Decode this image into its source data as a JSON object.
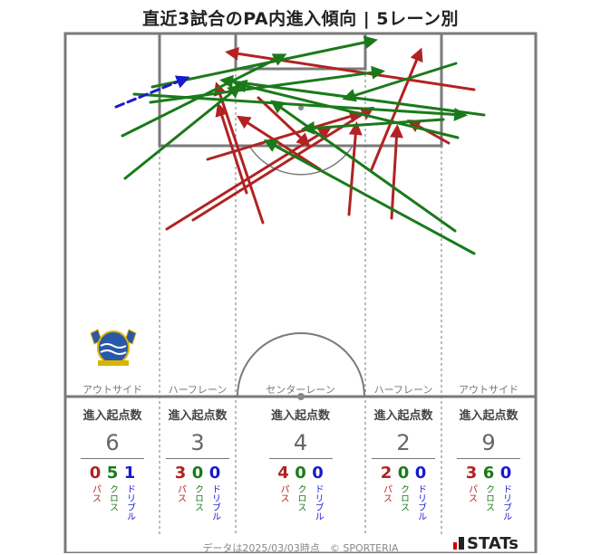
{
  "title": "直近3試合のPA内進入傾向 | 5レーン別",
  "footer": "データは2025/03/03時点　© SPORTERIA",
  "brand": "STATs",
  "colors": {
    "pass": "#b22222",
    "cross": "#1a7a1a",
    "dribble": "#1a1acc",
    "line": "#777777"
  },
  "labels": {
    "start_points": "進入起点数",
    "pass": "パス",
    "cross": "クロス",
    "dribble": "ドリブル"
  },
  "lanes": [
    {
      "name": "アウトサイド",
      "total": "6",
      "pass": "0",
      "cross": "5",
      "dribble": "1"
    },
    {
      "name": "ハーフレーン",
      "total": "3",
      "pass": "3",
      "cross": "0",
      "dribble": "0"
    },
    {
      "name": "センターレーン",
      "total": "4",
      "pass": "4",
      "cross": "0",
      "dribble": "0"
    },
    {
      "name": "ハーフレーン",
      "total": "2",
      "pass": "2",
      "cross": "0",
      "dribble": "0"
    },
    {
      "name": "アウトサイド",
      "total": "9",
      "pass": "3",
      "cross": "6",
      "dribble": "0"
    }
  ],
  "chart_data": {
    "type": "scatter",
    "description_units": "pitch coordinates (x across width, y down from goal line)",
    "arrows": [
      {
        "kind": "pass",
        "from": [
          290,
          246
        ],
        "to": [
          240,
          96
        ]
      },
      {
        "kind": "pass",
        "from": [
          213,
          243
        ],
        "to": [
          408,
          121
        ]
      },
      {
        "kind": "pass",
        "from": [
          184,
          253
        ],
        "to": [
          361,
          143
        ]
      },
      {
        "kind": "pass",
        "from": [
          272,
          213
        ],
        "to": [
          242,
          119
        ]
      },
      {
        "kind": "pass",
        "from": [
          385,
          237
        ],
        "to": [
          393,
          140
        ]
      },
      {
        "kind": "pass",
        "from": [
          410,
          187
        ],
        "to": [
          463,
          58
        ]
      },
      {
        "kind": "pass",
        "from": [
          432,
          241
        ],
        "to": [
          438,
          143
        ]
      },
      {
        "kind": "pass",
        "from": [
          353,
          187
        ],
        "to": [
          266,
          131
        ]
      },
      {
        "kind": "pass",
        "from": [
          523,
          99
        ],
        "to": [
          254,
          58
        ]
      },
      {
        "kind": "pass",
        "from": [
          495,
          158
        ],
        "to": [
          454,
          135
        ]
      },
      {
        "kind": "pass",
        "from": [
          229,
          176
        ],
        "to": [
          395,
          126
        ]
      },
      {
        "kind": "pass",
        "from": [
          285,
          108
        ],
        "to": [
          338,
          158
        ]
      },
      {
        "kind": "cross",
        "from": [
          138,
          197
        ],
        "to": [
          262,
          97
        ]
      },
      {
        "kind": "cross",
        "from": [
          135,
          150
        ],
        "to": [
          311,
          62
        ]
      },
      {
        "kind": "cross",
        "from": [
          168,
          96
        ],
        "to": [
          411,
          45
        ]
      },
      {
        "kind": "cross",
        "from": [
          148,
          104
        ],
        "to": [
          510,
          127
        ]
      },
      {
        "kind": "cross",
        "from": [
          166,
          113
        ],
        "to": [
          419,
          79
        ]
      },
      {
        "kind": "cross",
        "from": [
          523,
          280
        ],
        "to": [
          296,
          157
        ]
      },
      {
        "kind": "cross",
        "from": [
          502,
          255
        ],
        "to": [
          303,
          114
        ]
      },
      {
        "kind": "cross",
        "from": [
          534,
          127
        ],
        "to": [
          248,
          89
        ]
      },
      {
        "kind": "cross",
        "from": [
          503,
          70
        ],
        "to": [
          383,
          108
        ]
      },
      {
        "kind": "cross",
        "from": [
          489,
          132
        ],
        "to": [
          338,
          142
        ]
      },
      {
        "kind": "cross",
        "from": [
          505,
          152
        ],
        "to": [
          263,
          93
        ]
      },
      {
        "kind": "dribble",
        "from": [
          128,
          118
        ],
        "to": [
          204,
          87
        ]
      }
    ]
  }
}
